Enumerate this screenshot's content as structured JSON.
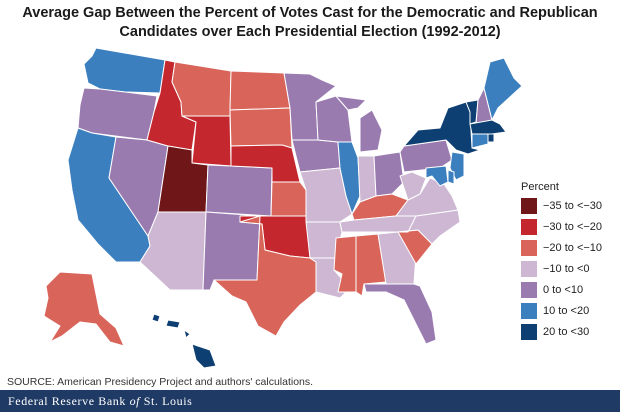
{
  "title_line1": "Average Gap Between the Percent of Votes Cast for the Democratic and Republican",
  "title_line2": "Candidates over Each Presidential Election (1992-2012)",
  "legend": {
    "title": "Percent",
    "items": [
      {
        "label": "−35 to <−30",
        "color": "#6e1618"
      },
      {
        "label": "−30 to <−20",
        "color": "#c4272e"
      },
      {
        "label": "−20 to <−10",
        "color": "#d9655a"
      },
      {
        "label": "−10 to <0",
        "color": "#cdb7d3"
      },
      {
        "label": "0 to <10",
        "color": "#9a7bb0"
      },
      {
        "label": "10 to <20",
        "color": "#3b7fbf"
      },
      {
        "label": "20 to <30",
        "color": "#0d3f73"
      }
    ]
  },
  "states": [
    {
      "id": "WA",
      "bin": 5
    },
    {
      "id": "OR",
      "bin": 4
    },
    {
      "id": "CA",
      "bin": 5
    },
    {
      "id": "NV",
      "bin": 4
    },
    {
      "id": "ID",
      "bin": 1
    },
    {
      "id": "MT",
      "bin": 2
    },
    {
      "id": "WY",
      "bin": 1
    },
    {
      "id": "UT",
      "bin": 0
    },
    {
      "id": "AZ",
      "bin": 3
    },
    {
      "id": "CO",
      "bin": 4
    },
    {
      "id": "NM",
      "bin": 4
    },
    {
      "id": "ND",
      "bin": 2
    },
    {
      "id": "SD",
      "bin": 2
    },
    {
      "id": "NE",
      "bin": 1
    },
    {
      "id": "KS",
      "bin": 2
    },
    {
      "id": "OK",
      "bin": 1
    },
    {
      "id": "TX",
      "bin": 2
    },
    {
      "id": "MN",
      "bin": 4
    },
    {
      "id": "IA",
      "bin": 4
    },
    {
      "id": "MO",
      "bin": 3
    },
    {
      "id": "AR",
      "bin": 3
    },
    {
      "id": "LA",
      "bin": 3
    },
    {
      "id": "WI",
      "bin": 4
    },
    {
      "id": "IL",
      "bin": 5
    },
    {
      "id": "MI",
      "bin": 4
    },
    {
      "id": "IN",
      "bin": 3
    },
    {
      "id": "OH",
      "bin": 4
    },
    {
      "id": "KY",
      "bin": 2
    },
    {
      "id": "TN",
      "bin": 3
    },
    {
      "id": "MS",
      "bin": 2
    },
    {
      "id": "AL",
      "bin": 2
    },
    {
      "id": "GA",
      "bin": 3
    },
    {
      "id": "FL",
      "bin": 4
    },
    {
      "id": "SC",
      "bin": 2
    },
    {
      "id": "NC",
      "bin": 3
    },
    {
      "id": "VA",
      "bin": 3
    },
    {
      "id": "WV",
      "bin": 3
    },
    {
      "id": "PA",
      "bin": 4
    },
    {
      "id": "NY",
      "bin": 6
    },
    {
      "id": "VT",
      "bin": 6
    },
    {
      "id": "NH",
      "bin": 4
    },
    {
      "id": "ME",
      "bin": 5
    },
    {
      "id": "MA",
      "bin": 6
    },
    {
      "id": "RI",
      "bin": 6
    },
    {
      "id": "CT",
      "bin": 5
    },
    {
      "id": "NJ",
      "bin": 5
    },
    {
      "id": "DE",
      "bin": 5
    },
    {
      "id": "MD",
      "bin": 5
    },
    {
      "id": "AK",
      "bin": 2
    },
    {
      "id": "HI",
      "bin": 6
    }
  ],
  "source": "SOURCE: American Presidency Project and authors' calculations.",
  "footer": {
    "part1": "Federal Reserve Bank ",
    "part2": "of",
    "part3": " St. Louis"
  }
}
